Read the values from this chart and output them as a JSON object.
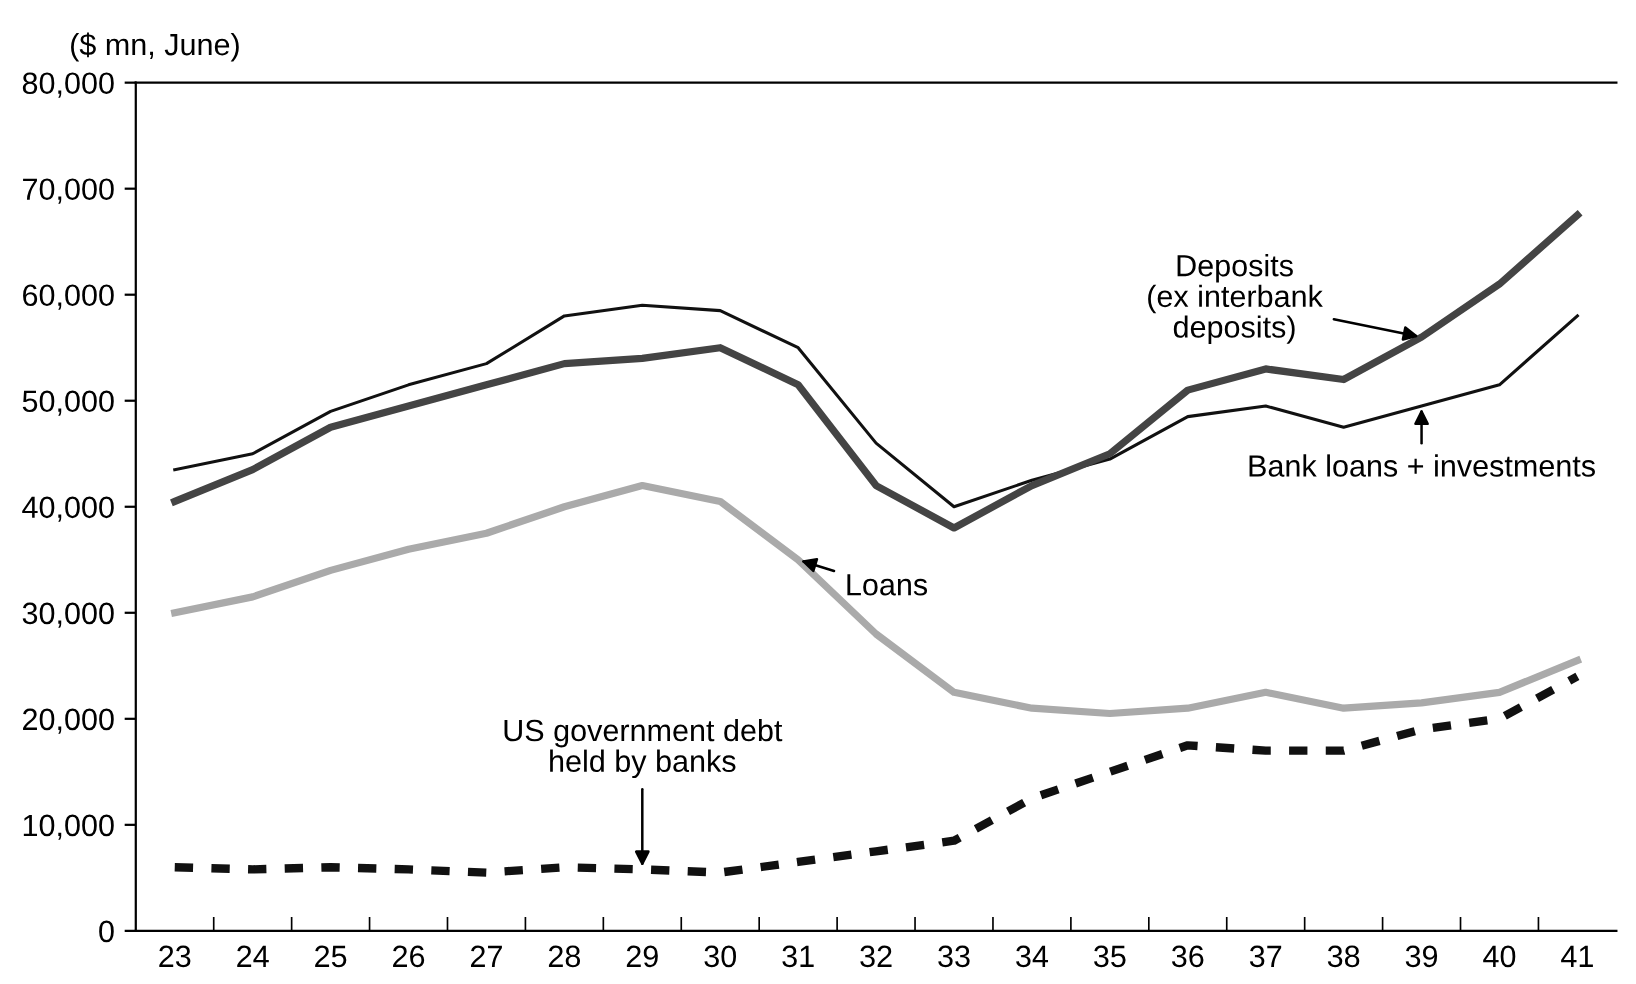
{
  "chart_data": {
    "type": "line",
    "ylabel": "($ mn, June)",
    "categories": [
      "23",
      "24",
      "25",
      "26",
      "27",
      "28",
      "29",
      "30",
      "31",
      "32",
      "33",
      "34",
      "35",
      "36",
      "37",
      "38",
      "39",
      "40",
      "41"
    ],
    "series": [
      {
        "name": "Bank loans + investments",
        "color": "#111111",
        "values": [
          43500,
          45000,
          49000,
          51500,
          53500,
          58000,
          59000,
          58500,
          55000,
          46000,
          40000,
          42500,
          44500,
          48500,
          49500,
          47500,
          49500,
          51500,
          58000
        ]
      },
      {
        "name": "Deposits\n(ex interbank\ndeposits)",
        "color": "#444444",
        "values": [
          40500,
          43500,
          47500,
          49500,
          51500,
          53500,
          54000,
          55000,
          51500,
          42000,
          38000,
          42000,
          45000,
          51000,
          53000,
          52000,
          56000,
          61000,
          67500
        ]
      },
      {
        "name": "Loans",
        "color": "#aaaaaa",
        "values": [
          30000,
          31500,
          34000,
          36000,
          37500,
          40000,
          42000,
          40500,
          35000,
          28000,
          22500,
          21000,
          20500,
          21000,
          22500,
          21000,
          21500,
          22500,
          25500
        ]
      },
      {
        "name": "US government debt\nheld by banks",
        "color": "#111111",
        "line_style": "dashed",
        "values": [
          6000,
          5800,
          6000,
          5800,
          5500,
          6000,
          5800,
          5500,
          6500,
          7500,
          8500,
          12500,
          15000,
          17500,
          17000,
          17000,
          19000,
          20000,
          24000
        ]
      }
    ],
    "ylim": [
      0,
      80000
    ],
    "yticks": [
      0,
      {
        "value": 10000,
        "label": "10,000"
      },
      {
        "value": 20000,
        "label": "20,000"
      },
      {
        "value": 30000,
        "label": "30,000"
      },
      {
        "value": 40000,
        "label": "40,000"
      },
      {
        "value": 50000,
        "label": "50,000"
      },
      {
        "value": 60000,
        "label": "60,000"
      },
      {
        "value": 70000,
        "label": "70,000"
      },
      {
        "value": 80000,
        "label": "80,000"
      }
    ],
    "grid": false,
    "legend": false
  }
}
